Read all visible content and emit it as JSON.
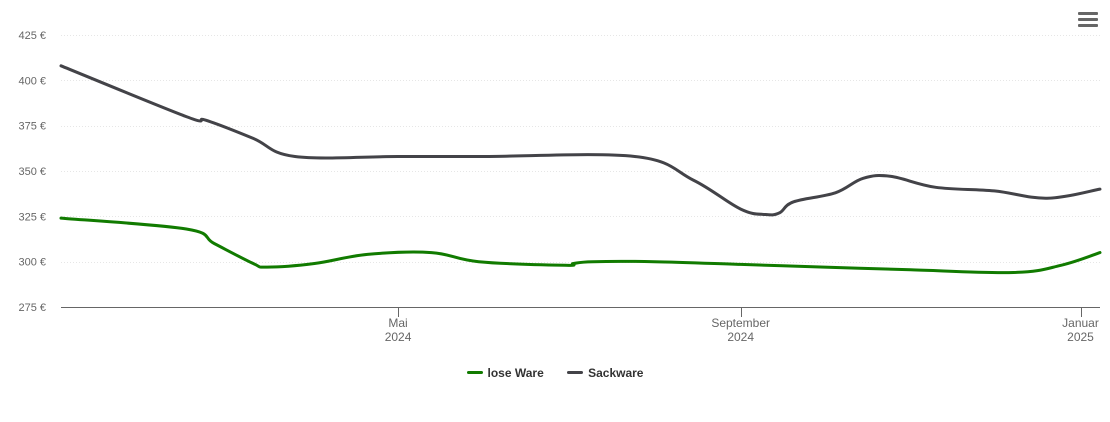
{
  "menu": {
    "icon": "hamburger-menu-icon"
  },
  "chart_data": {
    "type": "line",
    "title": "",
    "xlabel": "",
    "ylabel": "",
    "ylim": [
      275,
      425
    ],
    "y_ticks": [
      425,
      400,
      375,
      350,
      325,
      300,
      275
    ],
    "y_tick_labels": [
      "425 €",
      "400 €",
      "375 €",
      "350 €",
      "325 €",
      "300 €",
      "275 €"
    ],
    "xlim": [
      "2024-01-01",
      "2025-01-08"
    ],
    "x_ticks": [
      {
        "date": "2024-05-01",
        "line1": "Mai",
        "line2": "2024"
      },
      {
        "date": "2024-09-01",
        "line1": "September",
        "line2": "2024"
      },
      {
        "date": "2025-01-01",
        "line1": "Januar",
        "line2": "2025"
      }
    ],
    "grid": true,
    "legend_position": "bottom-center",
    "series": [
      {
        "name": "lose Ware",
        "color": "#117b00",
        "points": [
          [
            "2024-01-01",
            324
          ],
          [
            "2024-02-15",
            318
          ],
          [
            "2024-02-25",
            310
          ],
          [
            "2024-03-10",
            299
          ],
          [
            "2024-03-15",
            297
          ],
          [
            "2024-04-01",
            299
          ],
          [
            "2024-04-20",
            304
          ],
          [
            "2024-05-13",
            305
          ],
          [
            "2024-05-30",
            300
          ],
          [
            "2024-06-30",
            298
          ],
          [
            "2024-07-03",
            299
          ],
          [
            "2024-07-10",
            300
          ],
          [
            "2024-08-01",
            300
          ],
          [
            "2024-09-01",
            298.5
          ],
          [
            "2024-10-01",
            297
          ],
          [
            "2024-11-01",
            295.5
          ],
          [
            "2024-12-08",
            294
          ],
          [
            "2024-12-25",
            298
          ],
          [
            "2025-01-08",
            305
          ]
        ]
      },
      {
        "name": "Sackware",
        "color": "#434348",
        "points": [
          [
            "2024-01-01",
            408
          ],
          [
            "2024-02-15",
            380
          ],
          [
            "2024-02-22",
            378
          ],
          [
            "2024-03-10",
            368
          ],
          [
            "2024-03-25",
            358
          ],
          [
            "2024-05-01",
            358
          ],
          [
            "2024-06-01",
            358
          ],
          [
            "2024-07-25",
            358
          ],
          [
            "2024-08-15",
            345
          ],
          [
            "2024-09-01",
            329
          ],
          [
            "2024-09-10",
            326
          ],
          [
            "2024-09-15",
            327
          ],
          [
            "2024-09-20",
            333
          ],
          [
            "2024-10-05",
            338
          ],
          [
            "2024-10-15",
            346
          ],
          [
            "2024-10-25",
            347
          ],
          [
            "2024-11-10",
            341
          ],
          [
            "2024-12-01",
            339
          ],
          [
            "2024-12-20",
            335
          ],
          [
            "2025-01-08",
            340
          ]
        ]
      }
    ]
  }
}
